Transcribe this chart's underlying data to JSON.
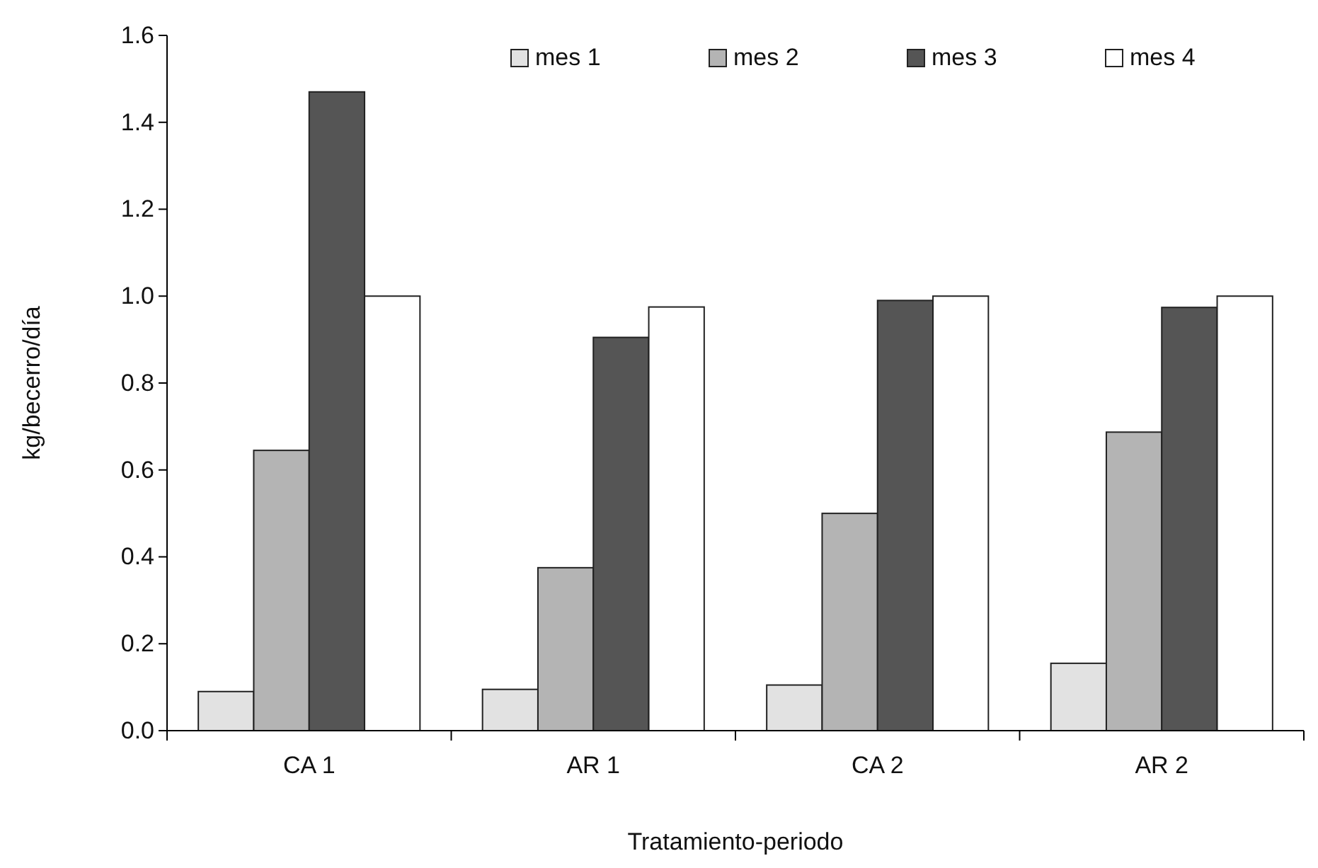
{
  "chart_data": {
    "type": "bar",
    "xlabel": "Tratamiento-periodo",
    "ylabel": "kg/becerro/día",
    "categories": [
      "CA 1",
      "AR 1",
      "CA 2",
      "AR 2"
    ],
    "series": [
      {
        "name": "mes 1",
        "color": "#e2e2e2",
        "values": [
          0.09,
          0.095,
          0.105,
          0.155
        ]
      },
      {
        "name": "mes 2",
        "color": "#b4b4b4",
        "values": [
          0.645,
          0.375,
          0.5,
          0.687
        ]
      },
      {
        "name": "mes 3",
        "color": "#555555",
        "values": [
          1.47,
          0.905,
          0.99,
          0.974
        ]
      },
      {
        "name": "mes 4",
        "color": "#ffffff",
        "values": [
          1.0,
          0.975,
          1.0,
          1.0
        ]
      }
    ],
    "ylim": [
      0,
      1.6
    ],
    "yticks": [
      {
        "value": 0,
        "label": "0.0"
      },
      {
        "value": 0.2,
        "label": "0.2"
      },
      {
        "value": 0.4,
        "label": "0.4"
      },
      {
        "value": 0.6,
        "label": "0.6"
      },
      {
        "value": 0.8,
        "label": "0.8"
      },
      {
        "value": 1,
        "label": "1.0"
      },
      {
        "value": 1.2,
        "label": "1.2"
      },
      {
        "value": 1.4,
        "label": "1.4"
      },
      {
        "value": 1.6,
        "label": "1.6"
      }
    ],
    "grid": false,
    "legend": "top right"
  }
}
